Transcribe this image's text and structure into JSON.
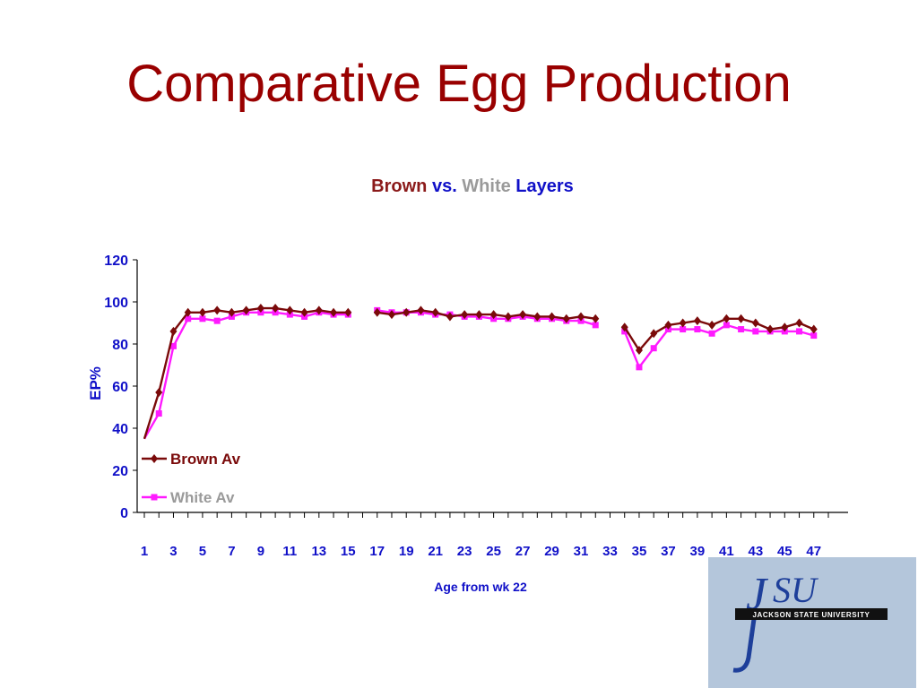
{
  "slide": {
    "title": "Comparative Egg Production"
  },
  "chart_data": {
    "type": "line",
    "title_parts": [
      {
        "text": "Brown",
        "color": "#8b1a1a"
      },
      {
        "text": "vs.",
        "color": "#1010c8"
      },
      {
        "text": "White",
        "color": "#9a9a9a"
      },
      {
        "text": "Layers",
        "color": "#1010c8"
      }
    ],
    "xlabel": "Age from wk 22",
    "ylabel": "EP%",
    "ylim": [
      0,
      120
    ],
    "yticks": [
      0,
      20,
      40,
      60,
      80,
      100,
      120
    ],
    "xlim": [
      1,
      48
    ],
    "xtick_labels": [
      "1",
      "3",
      "5",
      "7",
      "9",
      "11",
      "13",
      "15",
      "17",
      "19",
      "21",
      "23",
      "25",
      "27",
      "29",
      "31",
      "33",
      "35",
      "37",
      "39",
      "41",
      "43",
      "45",
      "47"
    ],
    "legend_position": "bottom-left",
    "series": [
      {
        "name": "Brown Av",
        "color": "#7a0a0a",
        "marker": "diamond",
        "values": [
          35,
          57,
          86,
          95,
          95,
          96,
          95,
          96,
          97,
          97,
          96,
          95,
          96,
          95,
          95,
          null,
          95,
          94,
          95,
          96,
          95,
          93,
          94,
          94,
          94,
          93,
          94,
          93,
          93,
          92,
          93,
          92,
          null,
          88,
          77,
          85,
          89,
          90,
          91,
          89,
          92,
          92,
          90,
          87,
          88,
          90,
          87
        ]
      },
      {
        "name": "White Av",
        "color": "#ff1aff",
        "marker": "square",
        "values": [
          35,
          47,
          79,
          92,
          92,
          91,
          93,
          95,
          95,
          95,
          94,
          93,
          95,
          94,
          94,
          null,
          96,
          95,
          95,
          95,
          94,
          94,
          93,
          93,
          92,
          92,
          93,
          92,
          92,
          91,
          91,
          89,
          null,
          86,
          69,
          78,
          87,
          87,
          87,
          85,
          89,
          87,
          86,
          86,
          86,
          86,
          84
        ]
      }
    ]
  },
  "logo": {
    "text": "JSU",
    "band_text": "JACKSON STATE UNIVERSITY"
  }
}
